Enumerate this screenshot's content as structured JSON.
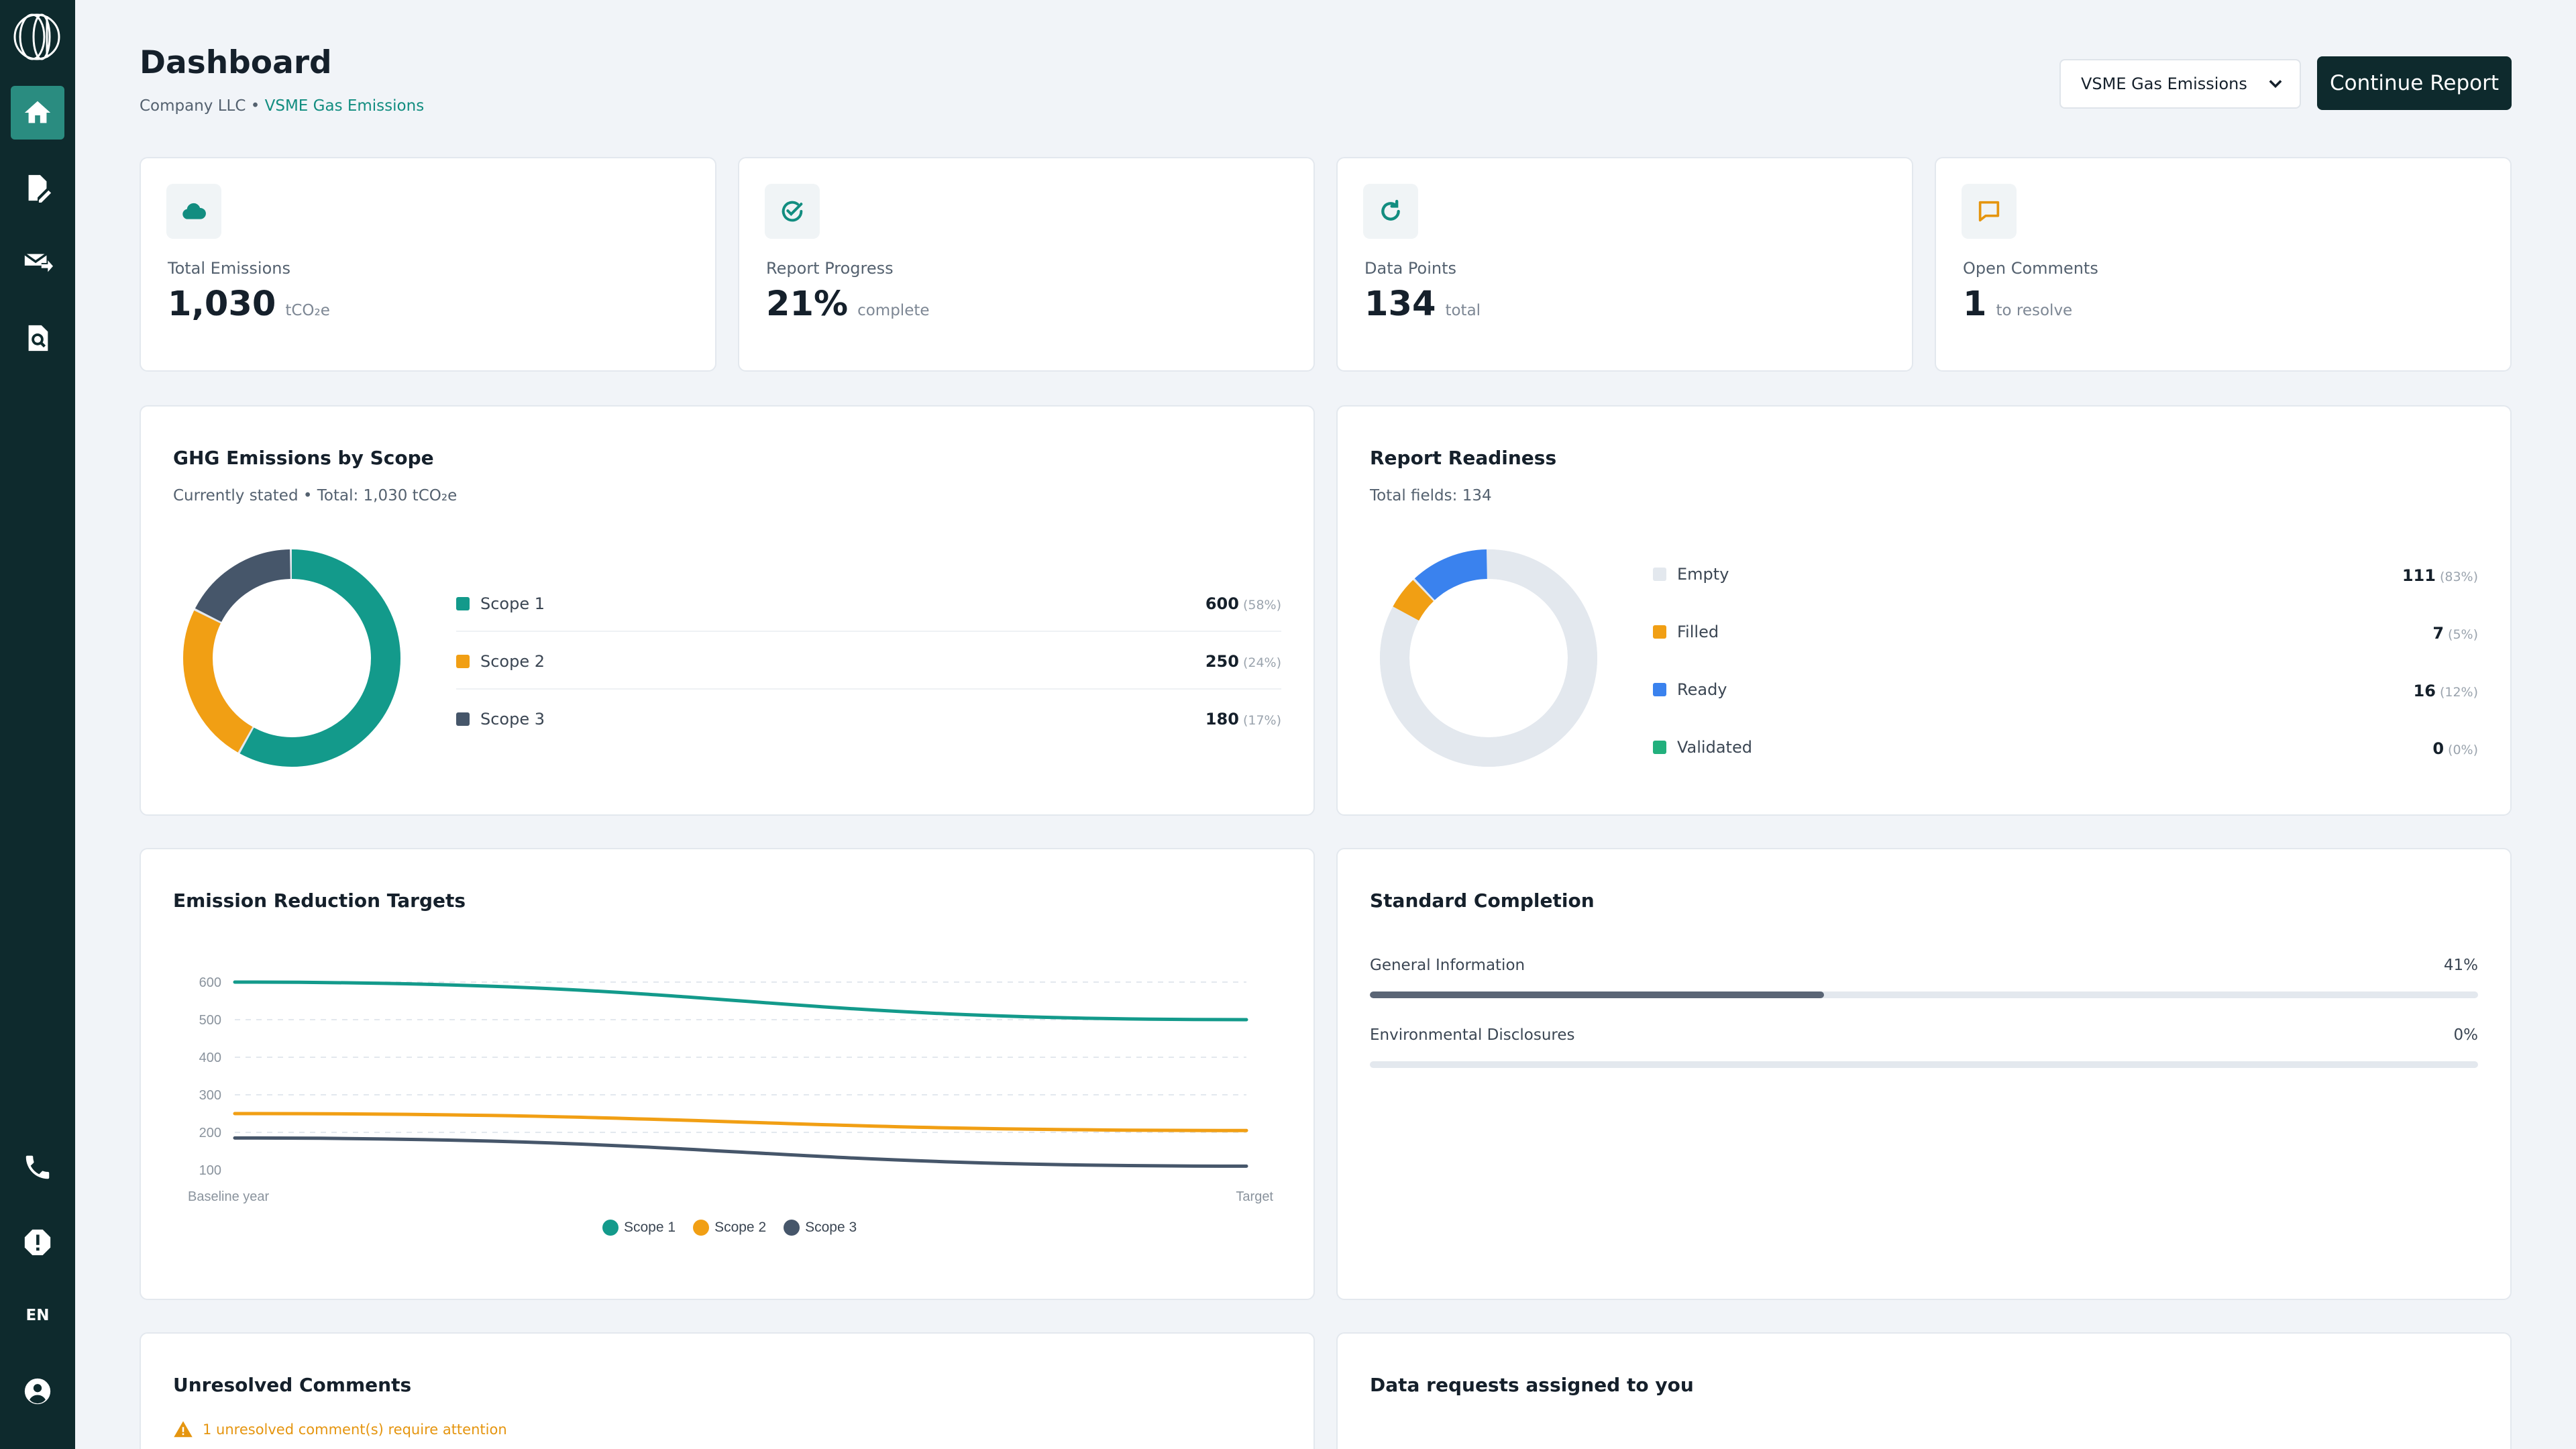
{
  "sidebar": {
    "items": [
      {
        "name": "home",
        "icon": "home-icon",
        "active": true
      },
      {
        "name": "reports",
        "icon": "document-edit-icon",
        "active": false
      },
      {
        "name": "requests",
        "icon": "mail-forward-icon",
        "active": false
      },
      {
        "name": "review",
        "icon": "document-search-icon",
        "active": false
      }
    ],
    "bottom": [
      {
        "name": "support",
        "icon": "phone-icon"
      },
      {
        "name": "alerts",
        "icon": "alert-circle-icon"
      },
      {
        "name": "account",
        "icon": "user-circle-icon"
      }
    ],
    "language": "EN"
  },
  "header": {
    "title": "Dashboard",
    "company": "Company LLC",
    "separator": "•",
    "report_link": "VSME Gas Emissions",
    "select_value": "VSME Gas Emissions",
    "continue_label": "Continue Report"
  },
  "stats": [
    {
      "label": "Total Emissions",
      "value": "1,030",
      "unit": "tCO₂e",
      "icon": "cloud-icon",
      "color": "#128d80"
    },
    {
      "label": "Report Progress",
      "value": "21%",
      "unit": "complete",
      "icon": "check-circle-icon",
      "color": "#128d80"
    },
    {
      "label": "Data Points",
      "value": "134",
      "unit": "total",
      "icon": "refresh-icon",
      "color": "#128d80"
    },
    {
      "label": "Open Comments",
      "value": "1",
      "unit": "to resolve",
      "icon": "comment-icon",
      "color": "#e5950f"
    }
  ],
  "ghg": {
    "title": "GHG Emissions by Scope",
    "subtitle": "Currently stated • Total: 1,030 tCO₂e",
    "items": [
      {
        "label": "Scope 1",
        "value": "600",
        "pct": "(58%)",
        "amount": 600,
        "color": "#139a8b"
      },
      {
        "label": "Scope 2",
        "value": "250",
        "pct": "(24%)",
        "amount": 250,
        "color": "#f19f14"
      },
      {
        "label": "Scope 3",
        "value": "180",
        "pct": "(17%)",
        "amount": 180,
        "color": "#46566a"
      }
    ]
  },
  "readiness": {
    "title": "Report Readiness",
    "subtitle": "Total fields: 134",
    "items": [
      {
        "label": "Empty",
        "value": "111",
        "pct": "(83%)",
        "amount": 111,
        "color": "#e3e8ee"
      },
      {
        "label": "Filled",
        "value": "7",
        "pct": "(5%)",
        "amount": 7,
        "color": "#f19f14"
      },
      {
        "label": "Ready",
        "value": "16",
        "pct": "(12%)",
        "amount": 16,
        "color": "#3a82ee"
      },
      {
        "label": "Validated",
        "value": "0",
        "pct": "(0%)",
        "amount": 0,
        "color": "#22b07d"
      }
    ]
  },
  "targets": {
    "title": "Emission Reduction Targets"
  },
  "chart_data": {
    "type": "line",
    "x": [
      "Baseline year",
      "Target"
    ],
    "ylim": [
      100,
      600
    ],
    "yticks": [
      600,
      500,
      400,
      300,
      200,
      100
    ],
    "grid": true,
    "legend_position": "bottom",
    "series": [
      {
        "name": "Scope 1",
        "values": [
          600,
          500
        ],
        "color": "#139a8b"
      },
      {
        "name": "Scope 2",
        "values": [
          250,
          205
        ],
        "color": "#f19f14"
      },
      {
        "name": "Scope 3",
        "values": [
          185,
          110
        ],
        "color": "#46566a"
      }
    ]
  },
  "completion": {
    "title": "Standard Completion",
    "items": [
      {
        "label": "General Information",
        "pct": "41%",
        "fraction": 0.41
      },
      {
        "label": "Environmental Disclosures",
        "pct": "0%",
        "fraction": 0
      }
    ]
  },
  "comments": {
    "title": "Unresolved Comments",
    "warning": "1 unresolved comment(s) require attention"
  },
  "requests": {
    "title": "Data requests assigned to you"
  }
}
